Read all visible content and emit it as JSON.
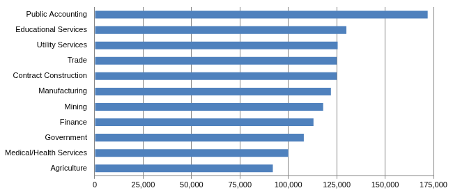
{
  "chart_data": {
    "type": "bar",
    "orientation": "horizontal",
    "categories": [
      "Public Accounting",
      "Educational Services",
      "Utility Services",
      "Trade",
      "Contract Construction",
      "Manufacturing",
      "Mining",
      "Finance",
      "Government",
      "Medical/Health Services",
      "Agriculture"
    ],
    "values": [
      172000,
      130000,
      125500,
      125000,
      125000,
      122000,
      118000,
      113000,
      108000,
      100000,
      92000
    ],
    "color": "#4f81bd",
    "xlim": [
      0,
      175000
    ],
    "xticks": [
      0,
      {
        "value": 25000,
        "label": "25,000"
      },
      {
        "value": 50000,
        "label": "50,000"
      },
      {
        "value": 75000,
        "label": "75,000"
      },
      {
        "value": 100000,
        "label": "100,000"
      },
      {
        "value": 125000,
        "label": "125,000"
      },
      {
        "value": 150000,
        "label": "150,000"
      },
      {
        "value": 175000,
        "label": "175,000"
      }
    ],
    "grid": true
  }
}
